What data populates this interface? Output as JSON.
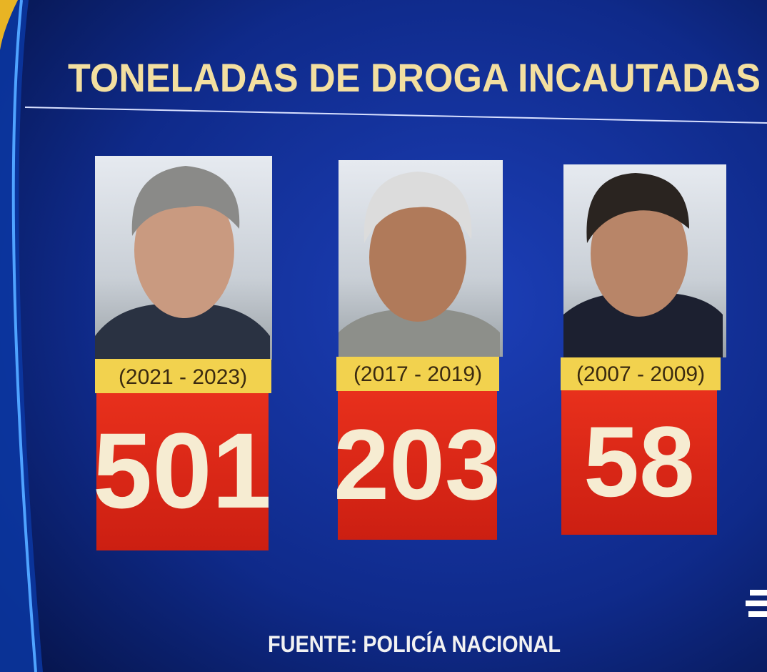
{
  "title": "TONELADAS DE DROGA INCAUTADAS",
  "panels": [
    {
      "period": "(2021 - 2023)",
      "value": "501"
    },
    {
      "period": "(2017 - 2019)",
      "value": "203"
    },
    {
      "period": "(2007 - 2009)",
      "value": "58"
    }
  ],
  "source": "FUENTE: POLICÍA NACIONAL"
}
